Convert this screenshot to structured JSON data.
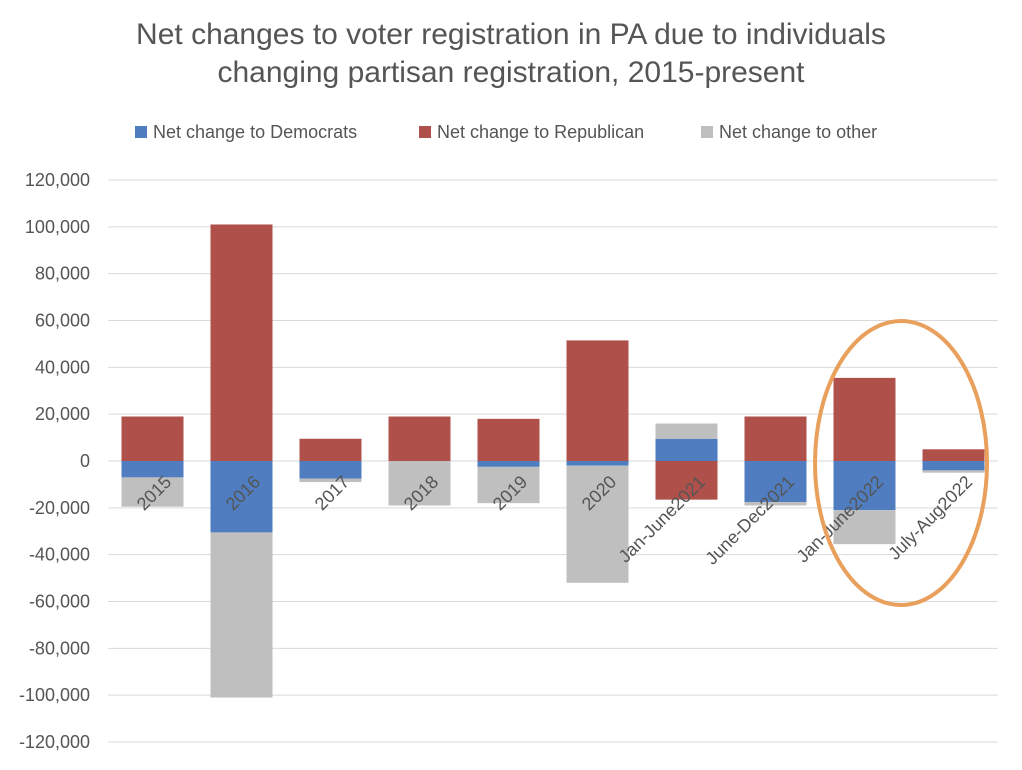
{
  "chart_data": {
    "type": "bar",
    "stacked": true,
    "title": "Net changes to voter registration in PA due to individuals changing partisan registration, 2015-present",
    "title_lines": [
      "Net changes to voter registration in PA due to individuals",
      "changing partisan registration, 2015-present"
    ],
    "categories": [
      "2015",
      "2016",
      "2017",
      "2018",
      "2019",
      "2020",
      "Jan-June2021",
      "June-Dec2021",
      "Jan-June2022",
      "July-Aug2022"
    ],
    "series": [
      {
        "name": "Net change to Democrats",
        "color": "#4F7DC0",
        "values": [
          -7000,
          -30500,
          -7500,
          0,
          -2500,
          -2000,
          9500,
          -17500,
          -21000,
          -4000
        ]
      },
      {
        "name": "Net change to Republican",
        "color": "#B0504B",
        "values": [
          19000,
          101000,
          9500,
          19000,
          18000,
          51500,
          -16500,
          19000,
          35500,
          5000
        ]
      },
      {
        "name": "Net change to other",
        "color": "#BFBFBF",
        "values": [
          -12500,
          -70500,
          -1500,
          -19000,
          -15500,
          -50000,
          6500,
          -1500,
          -14500,
          -1000
        ]
      }
    ],
    "yticks": [
      "120,000",
      "100,000",
      "80,000",
      "60,000",
      "40,000",
      "20,000",
      "0",
      "-20,000",
      "-40,000",
      "-60,000",
      "-80,000",
      "-100,000",
      "-120,000"
    ],
    "ylim": [
      -120000,
      120000
    ],
    "ytick_step": 20000,
    "grid": true,
    "legend_position": "top",
    "annotation": {
      "type": "ellipse",
      "color": "#E8A05C",
      "encloses": [
        "Jan-June2022",
        "July-Aug2022"
      ]
    }
  }
}
